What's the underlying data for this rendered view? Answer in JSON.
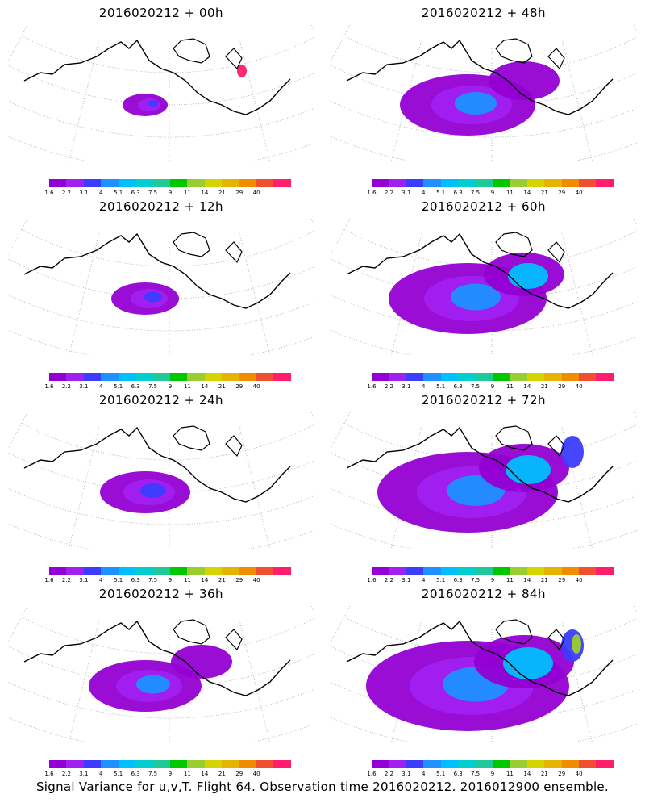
{
  "panels": [
    {
      "title": "2016020212 + 00h",
      "spread": 0
    },
    {
      "title": "2016020212 + 48h",
      "spread": 4
    },
    {
      "title": "2016020212 + 12h",
      "spread": 1
    },
    {
      "title": "2016020212 + 60h",
      "spread": 5
    },
    {
      "title": "2016020212 + 24h",
      "spread": 2
    },
    {
      "title": "2016020212 + 72h",
      "spread": 6
    },
    {
      "title": "2016020212 + 36h",
      "spread": 3
    },
    {
      "title": "2016020212 + 84h",
      "spread": 7
    }
  ],
  "colorbar": {
    "colors": [
      "#9400d3",
      "#a020f0",
      "#3c3cff",
      "#1e90ff",
      "#00bfff",
      "#00ced1",
      "#20c997",
      "#00c800",
      "#9acd32",
      "#d4d400",
      "#e6b400",
      "#f08c00",
      "#f05032",
      "#ff1e6e"
    ],
    "ticks": [
      "1.6",
      "2.2",
      "3.1",
      "4",
      "5.1",
      "6.3",
      "7.5",
      "9",
      "11",
      "14",
      "21",
      "29",
      "40"
    ]
  },
  "footer": "Signal Variance for u,v,T. Flight 64. Observation time 2016020212. 2016012900 ensemble."
}
